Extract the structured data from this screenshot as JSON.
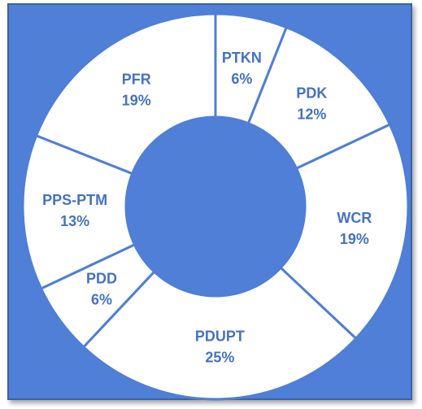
{
  "chart_data": {
    "type": "donut",
    "categories": [
      "PTKN",
      "PDK",
      "WCR",
      "PDUPT",
      "PDD",
      "PPS-PTM",
      "PFR"
    ],
    "values": [
      6,
      12,
      19,
      25,
      6,
      13,
      19
    ],
    "value_labels": [
      "6%",
      "12%",
      "19%",
      "25%",
      "6%",
      "13%",
      "19%"
    ],
    "color": "#ffffff",
    "background": "#4f7fd6"
  }
}
